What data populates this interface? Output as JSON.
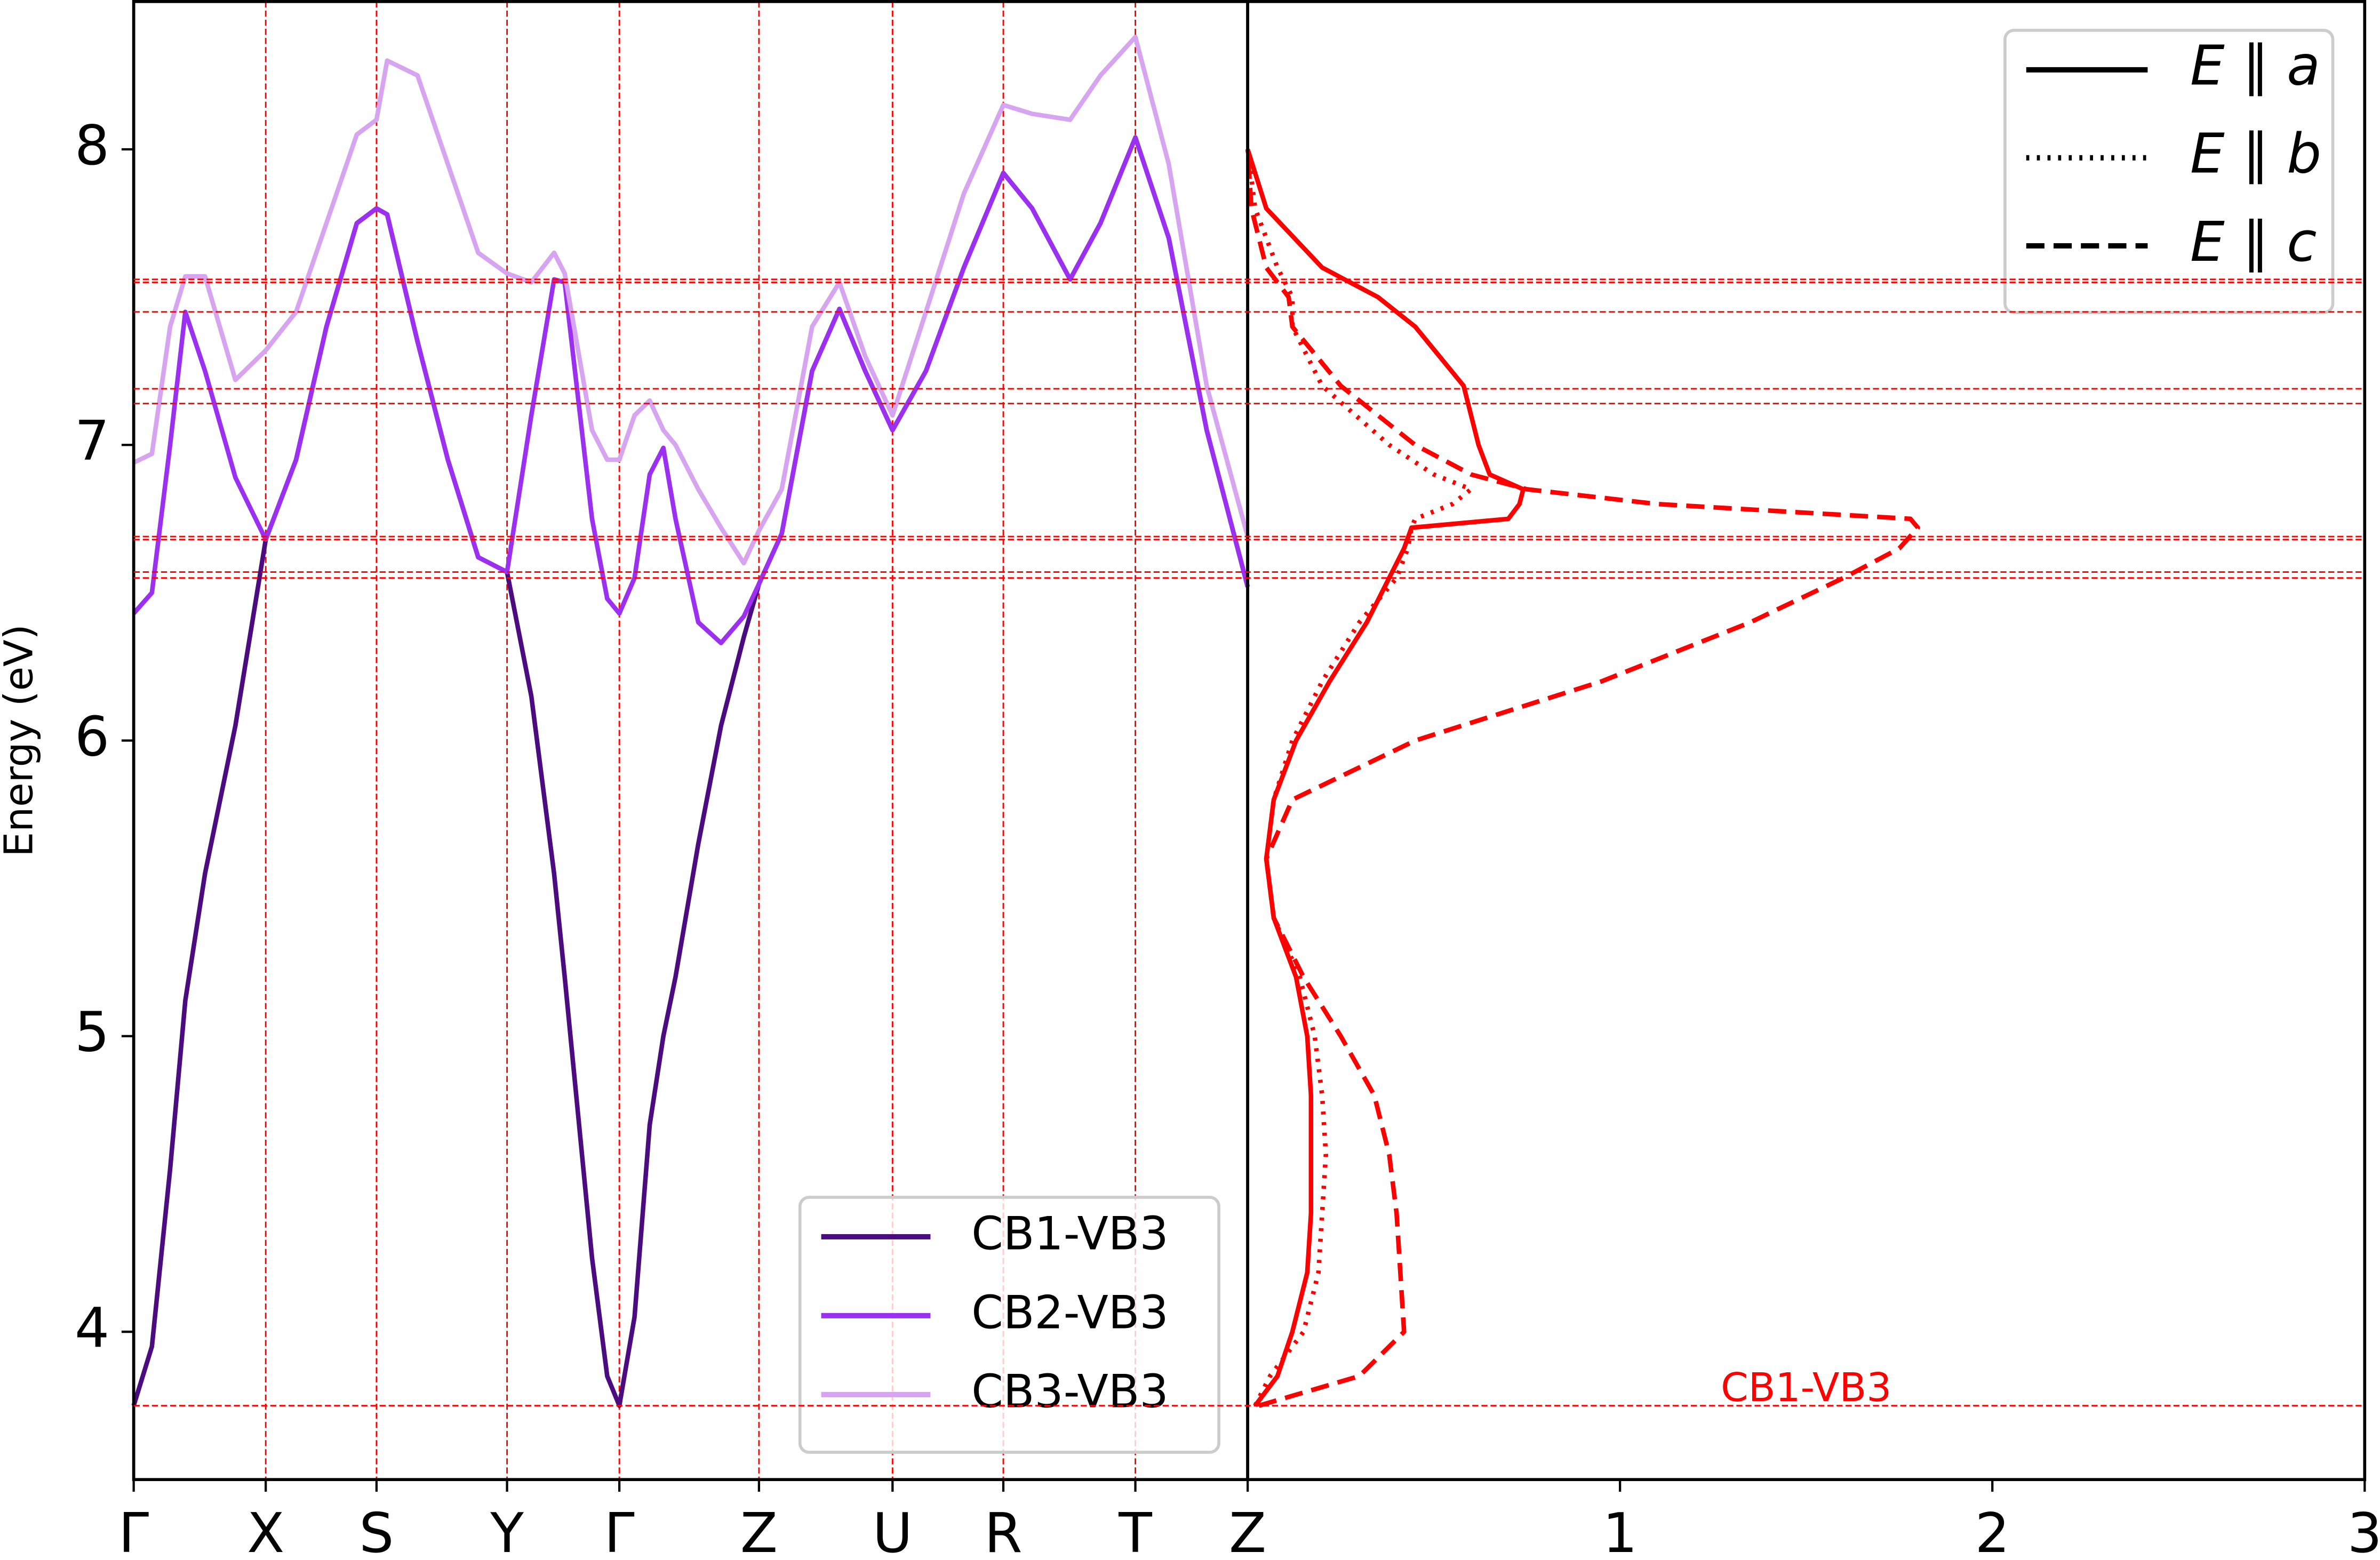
{
  "chart_data": [
    {
      "type": "line",
      "ylabel": "Energy (eV)",
      "xlim": [
        0,
        7.34
      ],
      "ylim": [
        3.5,
        8.5
      ],
      "xticks": [
        {
          "value": 0,
          "label": "Γ"
        },
        {
          "value": 0.87,
          "label": "X"
        },
        {
          "value": 1.6,
          "label": "S"
        },
        {
          "value": 2.46,
          "label": "Y"
        },
        {
          "value": 3.2,
          "label": "Γ"
        },
        {
          "value": 4.12,
          "label": "Z"
        },
        {
          "value": 5.0,
          "label": "U"
        },
        {
          "value": 5.73,
          "label": "R"
        },
        {
          "value": 6.6,
          "label": "T"
        },
        {
          "value": 7.34,
          "label": "Z"
        }
      ],
      "yticks": [
        4,
        5,
        6,
        7,
        8
      ],
      "grid": true,
      "reference_lines": [
        7.56,
        7.55,
        7.45,
        7.19,
        7.14,
        6.69,
        6.68,
        6.57,
        6.55,
        3.75
      ],
      "reference_color": "#ff0000",
      "legend": "lower center",
      "x": [
        0,
        0.12,
        0.24,
        0.34,
        0.47,
        0.67,
        0.87,
        1.07,
        1.27,
        1.47,
        1.6,
        1.67,
        1.87,
        2.07,
        2.27,
        2.46,
        2.62,
        2.77,
        2.84,
        3.02,
        3.12,
        3.2,
        3.3,
        3.4,
        3.49,
        3.57,
        3.72,
        3.87,
        4.02,
        4.12,
        4.27,
        4.47,
        4.65,
        4.82,
        5.0,
        5.22,
        5.47,
        5.73,
        5.92,
        6.17,
        6.37,
        6.6,
        6.82,
        7.07,
        7.34
      ],
      "series": [
        {
          "name": "CB1-VB3",
          "color": "#4b0c80",
          "values": [
            3.75,
            3.95,
            4.55,
            5.12,
            5.55,
            6.05,
            6.68,
            6.95,
            7.4,
            7.75,
            7.8,
            7.78,
            7.35,
            6.95,
            6.62,
            6.57,
            6.15,
            5.55,
            5.2,
            4.25,
            3.85,
            3.75,
            4.05,
            4.7,
            5.0,
            5.2,
            5.65,
            6.05,
            6.35,
            6.53,
            6.7,
            7.25,
            7.46,
            7.25,
            7.05,
            7.25,
            7.6,
            7.92,
            7.8,
            7.56,
            7.75,
            8.04,
            7.7,
            7.05,
            6.52
          ]
        },
        {
          "name": "CB2-VB3",
          "color": "#9b30f0",
          "values": [
            6.43,
            6.5,
            7.0,
            7.45,
            7.25,
            6.89,
            6.68,
            6.95,
            7.4,
            7.75,
            7.8,
            7.78,
            7.35,
            6.95,
            6.62,
            6.57,
            7.1,
            7.56,
            7.55,
            6.75,
            6.48,
            6.43,
            6.55,
            6.9,
            6.99,
            6.75,
            6.4,
            6.33,
            6.42,
            6.53,
            6.7,
            7.25,
            7.46,
            7.25,
            7.05,
            7.25,
            7.6,
            7.92,
            7.8,
            7.56,
            7.75,
            8.04,
            7.7,
            7.05,
            6.52
          ]
        },
        {
          "name": "CB3-VB3",
          "color": "#d7a4f0",
          "values": [
            6.94,
            6.97,
            7.4,
            7.57,
            7.57,
            7.22,
            7.32,
            7.45,
            7.75,
            8.05,
            8.1,
            8.3,
            8.25,
            7.95,
            7.65,
            7.58,
            7.55,
            7.65,
            7.58,
            7.05,
            6.95,
            6.95,
            7.1,
            7.15,
            7.05,
            7.0,
            6.85,
            6.72,
            6.6,
            6.71,
            6.85,
            7.4,
            7.55,
            7.3,
            7.1,
            7.45,
            7.85,
            8.15,
            8.12,
            8.1,
            8.25,
            8.38,
            7.95,
            7.2,
            6.69
          ]
        }
      ]
    },
    {
      "type": "line",
      "orientation": "horizontal",
      "annotation": "CB1-VB3",
      "annotation_color": "#ff0000",
      "xlim": [
        0,
        3
      ],
      "ylim": [
        3.5,
        8.5
      ],
      "xticks": [
        1,
        2,
        3
      ],
      "legend": "upper right",
      "y": [
        3.75,
        3.85,
        4.0,
        4.2,
        4.4,
        4.6,
        4.8,
        5.0,
        5.2,
        5.4,
        5.6,
        5.8,
        6.0,
        6.2,
        6.4,
        6.55,
        6.65,
        6.72,
        6.75,
        6.8,
        6.85,
        6.9,
        7.0,
        7.2,
        7.4,
        7.5,
        7.6,
        7.8,
        8.0
      ],
      "series": [
        {
          "name": "E ∥ a",
          "color": "#ff0000",
          "linestyle": "solid",
          "values": [
            0.02,
            0.08,
            0.12,
            0.16,
            0.17,
            0.17,
            0.17,
            0.16,
            0.13,
            0.07,
            0.05,
            0.07,
            0.13,
            0.22,
            0.32,
            0.38,
            0.42,
            0.44,
            0.7,
            0.73,
            0.74,
            0.65,
            0.62,
            0.58,
            0.45,
            0.35,
            0.2,
            0.05,
            0.0
          ]
        },
        {
          "name": "E ∥ b",
          "color": "#ff0000",
          "linestyle": "dotted",
          "values": [
            0.02,
            0.06,
            0.15,
            0.19,
            0.2,
            0.21,
            0.2,
            0.18,
            0.14,
            0.07,
            0.05,
            0.07,
            0.12,
            0.2,
            0.3,
            0.4,
            0.43,
            0.44,
            0.45,
            0.55,
            0.6,
            0.5,
            0.38,
            0.2,
            0.12,
            0.12,
            0.08,
            0.02,
            0.0
          ]
        },
        {
          "name": "E ∥ c",
          "color": "#ff0000",
          "linestyle": "dashed",
          "values": [
            0.03,
            0.3,
            0.42,
            0.41,
            0.4,
            0.38,
            0.34,
            0.25,
            0.15,
            0.07,
            0.05,
            0.12,
            0.45,
            0.95,
            1.35,
            1.6,
            1.75,
            1.8,
            1.78,
            1.1,
            0.75,
            0.6,
            0.45,
            0.25,
            0.12,
            0.11,
            0.05,
            0.01,
            0.0
          ]
        }
      ]
    }
  ]
}
